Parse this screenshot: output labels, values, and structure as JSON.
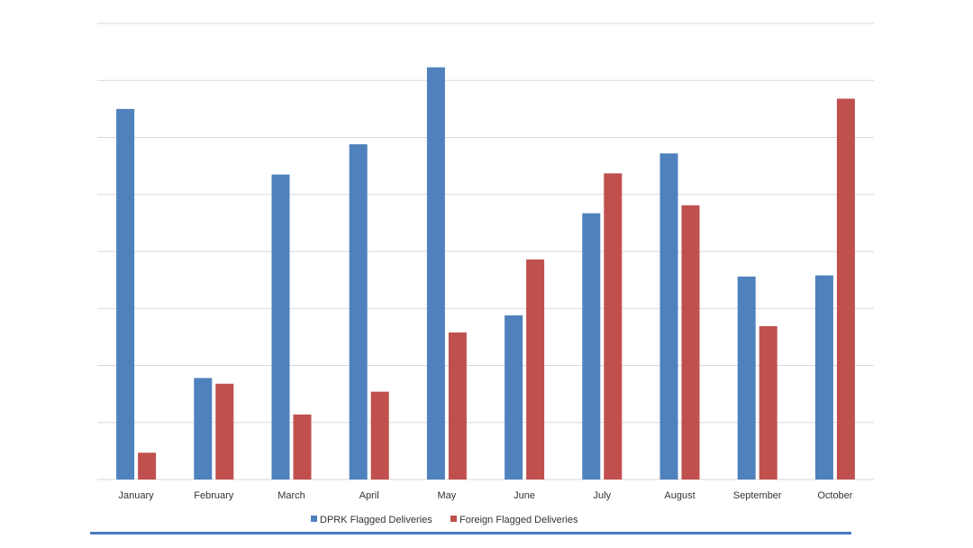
{
  "chart_data": {
    "type": "bar",
    "title": "",
    "xlabel": "",
    "ylabel": "",
    "categories": [
      "January",
      "February",
      "March",
      "April",
      "May",
      "June",
      "July",
      "August",
      "September",
      "October"
    ],
    "series": [
      {
        "name": "DPRK Flagged Deliveries",
        "color": "#4f81bd",
        "values": [
          6.5,
          1.78,
          5.35,
          5.88,
          7.23,
          2.88,
          4.67,
          5.72,
          3.56,
          3.58
        ]
      },
      {
        "name": "Foreign Flagged Deliveries",
        "color": "#c0504d",
        "values": [
          0.47,
          1.68,
          1.14,
          1.54,
          2.58,
          3.86,
          5.37,
          4.81,
          2.69,
          6.68
        ]
      }
    ],
    "ylim": [
      0,
      8
    ],
    "grid": true,
    "gridline_color": "#d9d9d9",
    "legend_position": "bottom"
  }
}
